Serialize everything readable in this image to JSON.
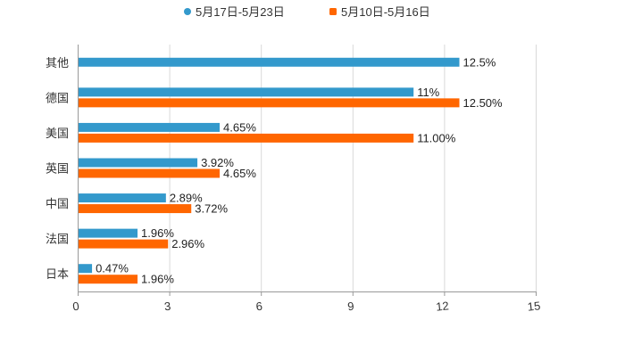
{
  "chart_data": {
    "type": "bar",
    "orientation": "horizontal",
    "categories": [
      "其他",
      "德国",
      "美国",
      "英国",
      "中国",
      "法国",
      "日本"
    ],
    "series": [
      {
        "name": "5月17日-5月23日",
        "color": "#3399cc",
        "values": [
          12.5,
          11,
          4.65,
          3.92,
          2.89,
          1.96,
          0.47
        ],
        "labels": [
          "12.5%",
          "11%",
          "4.65%",
          "3.92%",
          "2.89%",
          "1.96%",
          "0.47%"
        ]
      },
      {
        "name": "5月10日-5月16日",
        "color": "#ff6600",
        "values": [
          null,
          12.5,
          11.0,
          4.65,
          3.72,
          2.96,
          1.96
        ],
        "labels": [
          null,
          "12.50%",
          "11.00%",
          "4.65%",
          "3.72%",
          "2.96%",
          "1.96%"
        ]
      }
    ],
    "xlim": [
      0,
      15
    ],
    "xticks": [
      0,
      3,
      6,
      9,
      12,
      15
    ],
    "xtick_labels": [
      "0",
      "3",
      "6",
      "9",
      "12",
      "15"
    ],
    "grid": true,
    "legend": "top-center",
    "title": "",
    "xlabel": "",
    "ylabel": ""
  }
}
